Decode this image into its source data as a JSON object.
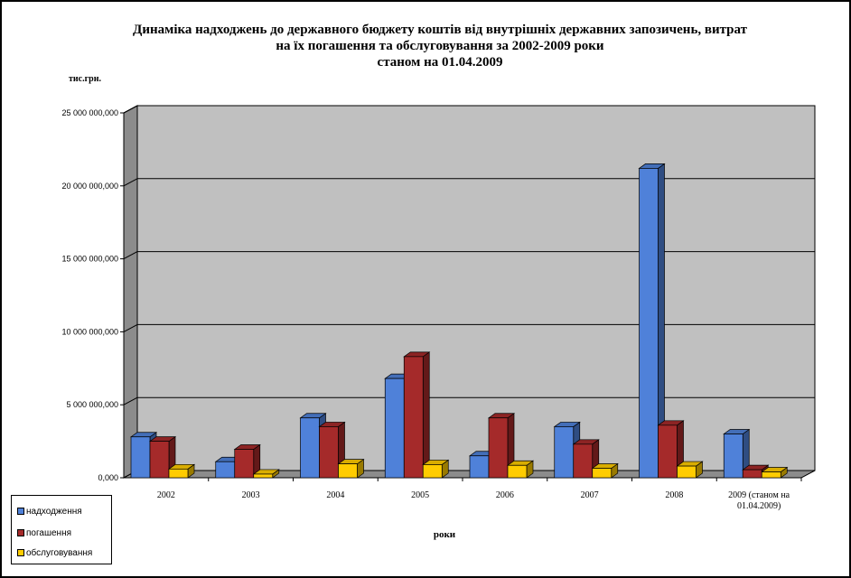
{
  "chart_data": {
    "type": "bar",
    "title_lines": [
      "Динаміка надходжень до державного бюджету коштів від внутрішніх державних запозичень, витрат",
      "на їх погашення та обслуговування за 2002-2009 роки",
      "станом на 01.04.2009"
    ],
    "ylabel": "тис.грн.",
    "xlabel": "роки",
    "categories": [
      "2002",
      "2003",
      "2004",
      "2005",
      "2006",
      "2007",
      "2008",
      "2009  (станом на 01.04.2009)"
    ],
    "category_lines": [
      [
        "2002"
      ],
      [
        "2003"
      ],
      [
        "2004"
      ],
      [
        "2005"
      ],
      [
        "2006"
      ],
      [
        "2007"
      ],
      [
        "2008"
      ],
      [
        "2009  (станом на",
        "01.04.2009)"
      ]
    ],
    "y_ticks": [
      "0,000",
      "5 000 000,000",
      "10 000 000,000",
      "15 000 000,000",
      "20 000 000,000",
      "25 000 000,000"
    ],
    "ylim": [
      0,
      25000000
    ],
    "grid": true,
    "legend_position": "bottom-left",
    "series": [
      {
        "name": "надходження",
        "color": "#4f81d9",
        "values": [
          2800000,
          1100000,
          4100000,
          6800000,
          1500000,
          3500000,
          21200000,
          3000000
        ]
      },
      {
        "name": "погашення",
        "color": "#a52a2a",
        "values": [
          2500000,
          1950000,
          3500000,
          8300000,
          4100000,
          2300000,
          3600000,
          550000
        ]
      },
      {
        "name": "обслуговування",
        "color": "#ffcc00",
        "values": [
          600000,
          250000,
          950000,
          900000,
          850000,
          650000,
          800000,
          400000
        ]
      }
    ]
  }
}
